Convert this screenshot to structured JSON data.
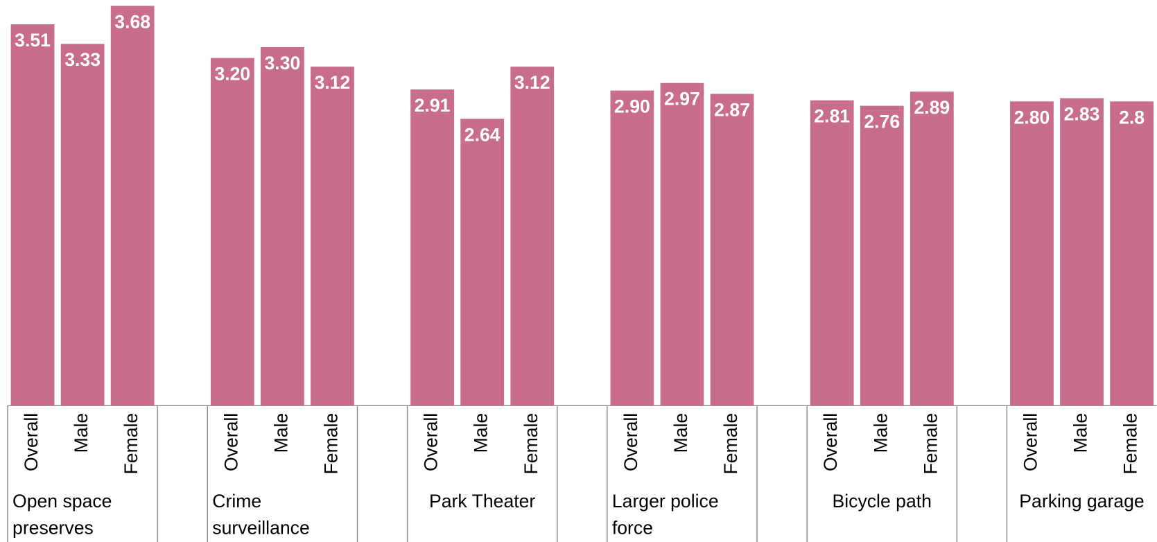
{
  "chart_data": {
    "type": "bar",
    "categories": [
      "Open space preserves",
      "Crime surveillance",
      "Park Theater",
      "Larger police force",
      "Bicycle path",
      "Parking garage"
    ],
    "series": [
      {
        "name": "Overall",
        "color": "#c96d8c",
        "values": [
          3.51,
          3.2,
          2.91,
          2.9,
          2.81,
          2.8
        ],
        "value_labels": [
          "3.51",
          "3.20",
          "2.91",
          "2.90",
          "2.81",
          "2.80"
        ]
      },
      {
        "name": "Male",
        "color": "#c96d8c",
        "values": [
          3.33,
          3.3,
          2.64,
          2.97,
          2.76,
          2.83
        ],
        "value_labels": [
          "3.33",
          "3.30",
          "2.64",
          "2.97",
          "2.76",
          "2.83"
        ]
      },
      {
        "name": "Female",
        "color": "#c96d8c",
        "values": [
          3.68,
          3.12,
          3.12,
          2.87,
          2.89,
          2.8
        ],
        "value_labels": [
          "3.68",
          "3.12",
          "3.12",
          "2.87",
          "2.89",
          "2.8"
        ]
      }
    ],
    "ylim": [
      0,
      3.7
    ]
  }
}
